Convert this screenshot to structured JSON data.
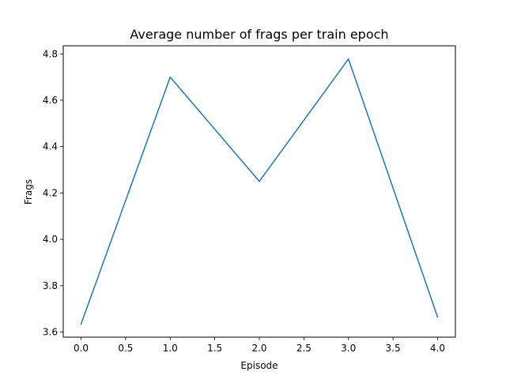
{
  "chart_data": {
    "type": "line",
    "title": "Average number of frags per train epoch",
    "xlabel": "Episode",
    "ylabel": "Frags",
    "x": [
      0,
      1,
      2,
      3,
      4
    ],
    "series": [
      {
        "values": [
          3.635,
          4.7,
          4.25,
          4.778,
          3.665
        ],
        "color": "#1f77b4"
      }
    ],
    "xlim": [
      -0.2,
      4.2
    ],
    "ylim": [
      3.578,
      4.835
    ],
    "xticks": [
      0.0,
      0.5,
      1.0,
      1.5,
      2.0,
      2.5,
      3.0,
      3.5,
      4.0
    ],
    "xtick_labels": [
      "0.0",
      "0.5",
      "1.0",
      "1.5",
      "2.0",
      "2.5",
      "3.0",
      "3.5",
      "4.0"
    ],
    "yticks": [
      3.6,
      3.8,
      4.0,
      4.2,
      4.4,
      4.6,
      4.8
    ],
    "ytick_labels": [
      "3.6",
      "3.8",
      "4.0",
      "4.2",
      "4.4",
      "4.6",
      "4.8"
    ],
    "grid": false,
    "legend": false
  }
}
